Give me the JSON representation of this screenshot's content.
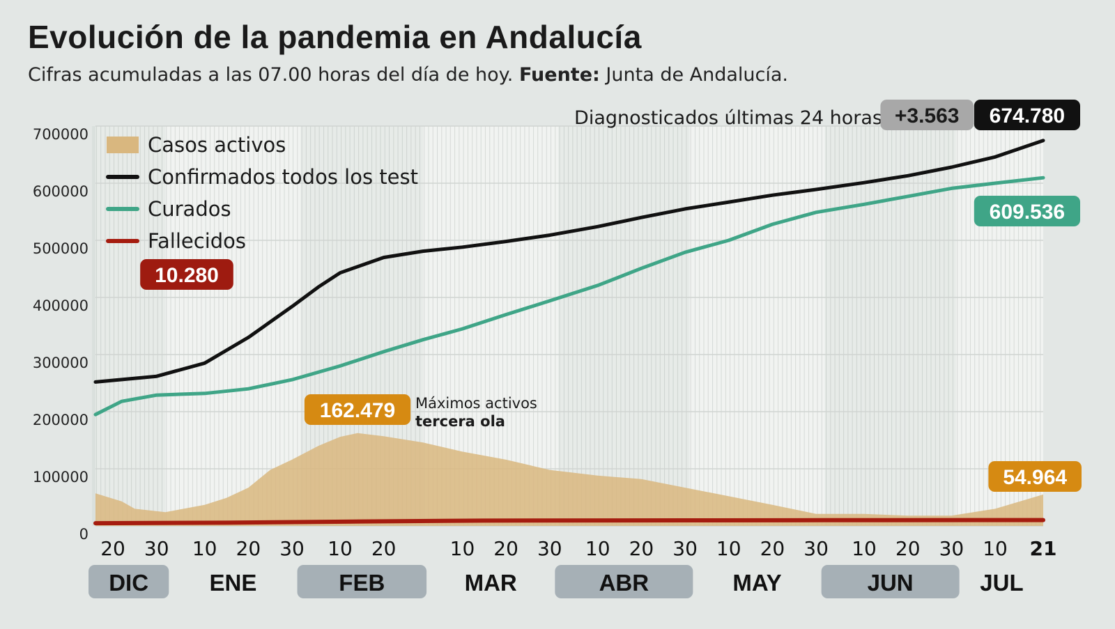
{
  "title": "Evolución de la pandemia en Andalucía",
  "subtitle": {
    "text": "Cifras acumuladas a las 07.00 horas del día de hoy.",
    "source_label": "Fuente:",
    "source": "Junta de Andalucía."
  },
  "chart_data": {
    "type": "line",
    "ylim": [
      0,
      700000
    ],
    "xlim": [
      "2020-12-16",
      "2021-07-21"
    ],
    "y_ticks": [
      "0",
      "100000",
      "200000",
      "300000",
      "400000",
      "500000",
      "600000",
      "700000"
    ],
    "grid": true,
    "legend_placement": "top-left",
    "x_day_ticks": [
      {
        "date": "2020-12-20",
        "label": "20"
      },
      {
        "date": "2020-12-30",
        "label": "30"
      },
      {
        "date": "2021-01-10",
        "label": "10"
      },
      {
        "date": "2021-01-20",
        "label": "20"
      },
      {
        "date": "2021-01-30",
        "label": "30"
      },
      {
        "date": "2021-02-10",
        "label": "10"
      },
      {
        "date": "2021-02-20",
        "label": "20"
      },
      {
        "date": "2021-03-10",
        "label": "10"
      },
      {
        "date": "2021-03-20",
        "label": "20"
      },
      {
        "date": "2021-03-30",
        "label": "30"
      },
      {
        "date": "2021-04-10",
        "label": "10"
      },
      {
        "date": "2021-04-20",
        "label": "20"
      },
      {
        "date": "2021-04-30",
        "label": "30"
      },
      {
        "date": "2021-05-10",
        "label": "10"
      },
      {
        "date": "2021-05-20",
        "label": "20"
      },
      {
        "date": "2021-05-30",
        "label": "30"
      },
      {
        "date": "2021-06-10",
        "label": "10"
      },
      {
        "date": "2021-06-20",
        "label": "20"
      },
      {
        "date": "2021-06-30",
        "label": "30"
      },
      {
        "date": "2021-07-10",
        "label": "10"
      },
      {
        "date": "2021-07-21",
        "label": "21",
        "bold": true
      }
    ],
    "months": [
      {
        "label": "DIC",
        "start": "2020-12-16",
        "end": "2020-12-31",
        "highlight": true
      },
      {
        "label": "ENE",
        "start": "2021-01-01",
        "end": "2021-01-31",
        "highlight": false
      },
      {
        "label": "FEB",
        "start": "2021-02-01",
        "end": "2021-02-28",
        "highlight": true
      },
      {
        "label": "MAR",
        "start": "2021-03-01",
        "end": "2021-03-31",
        "highlight": false
      },
      {
        "label": "ABR",
        "start": "2021-04-01",
        "end": "2021-04-30",
        "highlight": true
      },
      {
        "label": "MAY",
        "start": "2021-05-01",
        "end": "2021-05-31",
        "highlight": false
      },
      {
        "label": "JUN",
        "start": "2021-06-01",
        "end": "2021-06-30",
        "highlight": true
      },
      {
        "label": "JUL",
        "start": "2021-07-01",
        "end": "2021-07-21",
        "highlight": false
      }
    ],
    "series": [
      {
        "name": "Casos activos",
        "kind": "area",
        "color": "#d9b77f",
        "points": [
          [
            "2020-12-16",
            57000
          ],
          [
            "2020-12-22",
            43000
          ],
          [
            "2020-12-25",
            30000
          ],
          [
            "2021-01-01",
            24000
          ],
          [
            "2021-01-10",
            37000
          ],
          [
            "2021-01-15",
            49000
          ],
          [
            "2021-01-20",
            67000
          ],
          [
            "2021-01-25",
            98000
          ],
          [
            "2021-01-30",
            116000
          ],
          [
            "2021-02-05",
            140000
          ],
          [
            "2021-02-10",
            156000
          ],
          [
            "2021-02-14",
            162479
          ],
          [
            "2021-02-20",
            157000
          ],
          [
            "2021-03-01",
            146000
          ],
          [
            "2021-03-10",
            130000
          ],
          [
            "2021-03-20",
            116000
          ],
          [
            "2021-03-30",
            98000
          ],
          [
            "2021-04-10",
            88000
          ],
          [
            "2021-04-20",
            82000
          ],
          [
            "2021-04-30",
            67000
          ],
          [
            "2021-05-10",
            52000
          ],
          [
            "2021-05-20",
            37000
          ],
          [
            "2021-05-30",
            21000
          ],
          [
            "2021-06-10",
            21000
          ],
          [
            "2021-06-20",
            18000
          ],
          [
            "2021-06-30",
            18000
          ],
          [
            "2021-07-10",
            30000
          ],
          [
            "2021-07-21",
            54964
          ]
        ]
      },
      {
        "name": "Confirmados todos los test",
        "kind": "line",
        "color": "#111111",
        "points": [
          [
            "2020-12-16",
            252000
          ],
          [
            "2020-12-30",
            262000
          ],
          [
            "2021-01-10",
            285000
          ],
          [
            "2021-01-20",
            330000
          ],
          [
            "2021-01-30",
            384000
          ],
          [
            "2021-02-05",
            418000
          ],
          [
            "2021-02-10",
            443000
          ],
          [
            "2021-02-20",
            470000
          ],
          [
            "2021-03-01",
            481000
          ],
          [
            "2021-03-10",
            488000
          ],
          [
            "2021-03-20",
            498000
          ],
          [
            "2021-03-30",
            509000
          ],
          [
            "2021-04-10",
            524000
          ],
          [
            "2021-04-20",
            540000
          ],
          [
            "2021-04-30",
            555000
          ],
          [
            "2021-05-10",
            567000
          ],
          [
            "2021-05-20",
            579000
          ],
          [
            "2021-05-30",
            589000
          ],
          [
            "2021-06-10",
            601000
          ],
          [
            "2021-06-20",
            613000
          ],
          [
            "2021-06-30",
            628000
          ],
          [
            "2021-07-10",
            646000
          ],
          [
            "2021-07-21",
            674780
          ]
        ]
      },
      {
        "name": "Curados",
        "kind": "line",
        "color": "#3fa587",
        "points": [
          [
            "2020-12-16",
            195000
          ],
          [
            "2020-12-22",
            218000
          ],
          [
            "2020-12-30",
            229000
          ],
          [
            "2021-01-10",
            232000
          ],
          [
            "2021-01-20",
            240000
          ],
          [
            "2021-01-30",
            256000
          ],
          [
            "2021-02-10",
            280000
          ],
          [
            "2021-02-20",
            305000
          ],
          [
            "2021-03-01",
            326000
          ],
          [
            "2021-03-10",
            345000
          ],
          [
            "2021-03-20",
            370000
          ],
          [
            "2021-03-30",
            394000
          ],
          [
            "2021-04-10",
            421000
          ],
          [
            "2021-04-20",
            451000
          ],
          [
            "2021-04-30",
            479000
          ],
          [
            "2021-05-10",
            500000
          ],
          [
            "2021-05-20",
            528000
          ],
          [
            "2021-05-30",
            549000
          ],
          [
            "2021-06-10",
            563000
          ],
          [
            "2021-06-20",
            577000
          ],
          [
            "2021-06-30",
            591000
          ],
          [
            "2021-07-10",
            600000
          ],
          [
            "2021-07-21",
            609536
          ]
        ]
      },
      {
        "name": "Fallecidos",
        "kind": "line",
        "color": "#a51c0f",
        "points": [
          [
            "2020-12-16",
            4800
          ],
          [
            "2021-01-15",
            5600
          ],
          [
            "2021-02-15",
            7800
          ],
          [
            "2021-03-15",
            9300
          ],
          [
            "2021-04-30",
            9700
          ],
          [
            "2021-06-01",
            10000
          ],
          [
            "2021-07-21",
            10280
          ]
        ]
      }
    ],
    "annotations": {
      "deaths_total": {
        "label": "10.280",
        "color": "#9e1b10"
      },
      "recovered_total": {
        "label": "609.536",
        "color": "#3fa587"
      },
      "active_current": {
        "label": "54.964",
        "color": "#d68a12"
      },
      "active_max": {
        "label": "162.479",
        "color": "#d68a12",
        "note_line1": "Máximos activos",
        "note_line2": "tercera ola"
      },
      "diagnosed_24h": {
        "text": "Diagnosticados últimas 24 horas",
        "delta": "+3.563",
        "total": "674.780"
      }
    }
  }
}
